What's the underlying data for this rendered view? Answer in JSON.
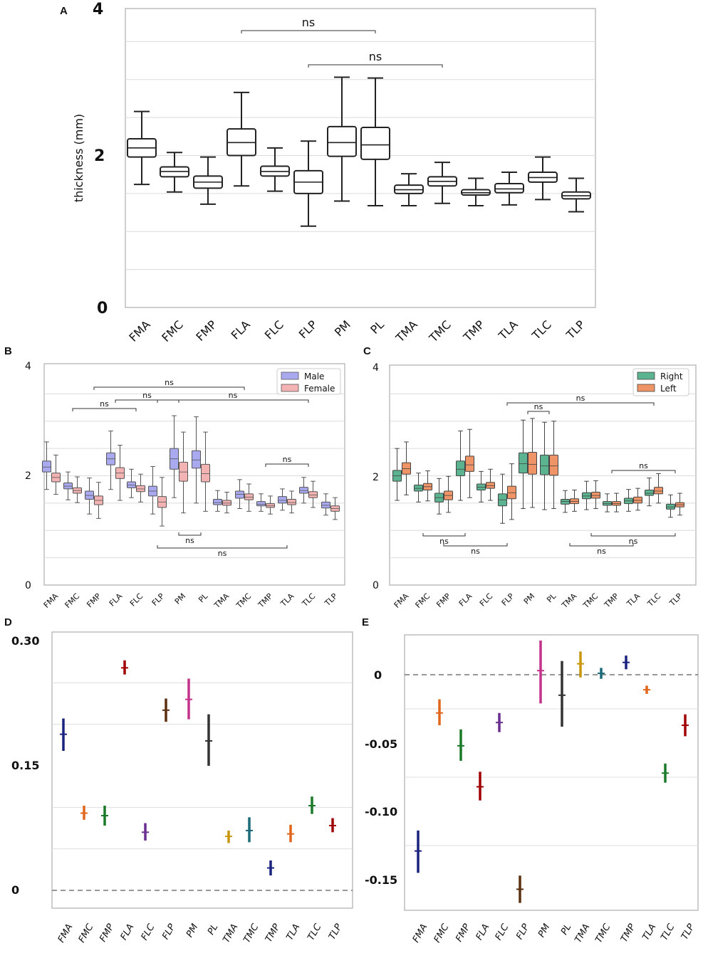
{
  "chart_data": [
    {
      "panel": "A",
      "type": "box",
      "ylabel": "thickness (mm)",
      "ylim": [
        0,
        4
      ],
      "yticks": [
        "0",
        "2",
        "4"
      ],
      "grid": true,
      "categories": [
        "FMA",
        "FMC",
        "FMP",
        "FLA",
        "FLC",
        "FLP",
        "PM",
        "PL",
        "TMA",
        "TMC",
        "TMP",
        "TLA",
        "TLC",
        "TLP"
      ],
      "boxes": [
        {
          "min": 1.62,
          "q1": 1.98,
          "med": 2.1,
          "q3": 2.22,
          "max": 2.58
        },
        {
          "min": 1.52,
          "q1": 1.72,
          "med": 1.79,
          "q3": 1.85,
          "max": 2.04
        },
        {
          "min": 1.36,
          "q1": 1.57,
          "med": 1.65,
          "q3": 1.73,
          "max": 1.98
        },
        {
          "min": 1.6,
          "q1": 2.0,
          "med": 2.17,
          "q3": 2.35,
          "max": 2.83
        },
        {
          "min": 1.53,
          "q1": 1.73,
          "med": 1.79,
          "q3": 1.86,
          "max": 2.1
        },
        {
          "min": 1.07,
          "q1": 1.5,
          "med": 1.65,
          "q3": 1.8,
          "max": 2.19
        },
        {
          "min": 1.4,
          "q1": 1.99,
          "med": 2.17,
          "q3": 2.38,
          "max": 3.03
        },
        {
          "min": 1.34,
          "q1": 1.95,
          "med": 2.14,
          "q3": 2.37,
          "max": 3.02
        },
        {
          "min": 1.34,
          "q1": 1.5,
          "med": 1.55,
          "q3": 1.61,
          "max": 1.76
        },
        {
          "min": 1.37,
          "q1": 1.6,
          "med": 1.66,
          "q3": 1.72,
          "max": 1.91
        },
        {
          "min": 1.34,
          "q1": 1.48,
          "med": 1.51,
          "q3": 1.55,
          "max": 1.7
        },
        {
          "min": 1.35,
          "q1": 1.51,
          "med": 1.56,
          "q3": 1.63,
          "max": 1.78
        },
        {
          "min": 1.42,
          "q1": 1.65,
          "med": 1.71,
          "q3": 1.78,
          "max": 1.98
        },
        {
          "min": 1.26,
          "q1": 1.43,
          "med": 1.47,
          "q3": 1.52,
          "max": 1.7
        }
      ],
      "annotations": [
        {
          "text": "ns",
          "from": "FLA",
          "to": "PL"
        },
        {
          "text": "ns",
          "from": "FLP",
          "to": "TMC"
        }
      ]
    },
    {
      "panel": "B",
      "type": "grouped-box",
      "ylim": [
        0,
        4
      ],
      "yticks": [
        "0",
        "2",
        "4"
      ],
      "legend_position": "top-right",
      "categories": [
        "FMA",
        "FMC",
        "FMP",
        "FLA",
        "FLC",
        "FLP",
        "PM",
        "PL",
        "TMA",
        "TMC",
        "TMP",
        "TLA",
        "TLC",
        "TLP"
      ],
      "series": [
        {
          "name": "Male",
          "color": "#a9a9f0",
          "edge": "#555555",
          "boxes": [
            {
              "min": 1.75,
              "q1": 2.07,
              "med": 2.16,
              "q3": 2.27,
              "max": 2.62
            },
            {
              "min": 1.56,
              "q1": 1.76,
              "med": 1.81,
              "q3": 1.87,
              "max": 2.07
            },
            {
              "min": 1.3,
              "q1": 1.57,
              "med": 1.64,
              "q3": 1.72,
              "max": 1.96
            },
            {
              "min": 1.75,
              "q1": 2.2,
              "med": 2.31,
              "q3": 2.42,
              "max": 2.82
            },
            {
              "min": 1.6,
              "q1": 1.78,
              "med": 1.83,
              "q3": 1.89,
              "max": 2.12
            },
            {
              "min": 1.3,
              "q1": 1.63,
              "med": 1.72,
              "q3": 1.81,
              "max": 2.17
            },
            {
              "min": 1.6,
              "q1": 2.12,
              "med": 2.31,
              "q3": 2.5,
              "max": 3.1
            },
            {
              "min": 1.5,
              "q1": 2.14,
              "med": 2.29,
              "q3": 2.46,
              "max": 3.08
            },
            {
              "min": 1.35,
              "q1": 1.47,
              "med": 1.51,
              "q3": 1.57,
              "max": 1.73
            },
            {
              "min": 1.4,
              "q1": 1.59,
              "med": 1.66,
              "q3": 1.72,
              "max": 1.93
            },
            {
              "min": 1.35,
              "q1": 1.45,
              "med": 1.48,
              "q3": 1.53,
              "max": 1.67
            },
            {
              "min": 1.37,
              "q1": 1.5,
              "med": 1.55,
              "q3": 1.62,
              "max": 1.76
            },
            {
              "min": 1.5,
              "q1": 1.68,
              "med": 1.73,
              "q3": 1.79,
              "max": 1.97
            },
            {
              "min": 1.28,
              "q1": 1.41,
              "med": 1.46,
              "q3": 1.52,
              "max": 1.67
            }
          ]
        },
        {
          "name": "Female",
          "color": "#f4b3b3",
          "edge": "#555555",
          "boxes": [
            {
              "min": 1.66,
              "q1": 1.89,
              "med": 1.97,
              "q3": 2.05,
              "max": 2.38
            },
            {
              "min": 1.51,
              "q1": 1.68,
              "med": 1.73,
              "q3": 1.78,
              "max": 1.98
            },
            {
              "min": 1.22,
              "q1": 1.47,
              "med": 1.55,
              "q3": 1.63,
              "max": 1.88
            },
            {
              "min": 1.55,
              "q1": 1.95,
              "med": 2.05,
              "q3": 2.15,
              "max": 2.56
            },
            {
              "min": 1.52,
              "q1": 1.71,
              "med": 1.76,
              "q3": 1.82,
              "max": 2.03
            },
            {
              "min": 1.08,
              "q1": 1.42,
              "med": 1.52,
              "q3": 1.62,
              "max": 1.97
            },
            {
              "min": 1.32,
              "q1": 1.9,
              "med": 2.07,
              "q3": 2.25,
              "max": 2.8
            },
            {
              "min": 1.35,
              "q1": 1.89,
              "med": 2.04,
              "q3": 2.21,
              "max": 2.8
            },
            {
              "min": 1.32,
              "q1": 1.46,
              "med": 1.5,
              "q3": 1.55,
              "max": 1.7
            },
            {
              "min": 1.35,
              "q1": 1.56,
              "med": 1.61,
              "q3": 1.67,
              "max": 1.85
            },
            {
              "min": 1.3,
              "q1": 1.42,
              "med": 1.45,
              "q3": 1.49,
              "max": 1.63
            },
            {
              "min": 1.32,
              "q1": 1.47,
              "med": 1.51,
              "q3": 1.57,
              "max": 1.72
            },
            {
              "min": 1.42,
              "q1": 1.6,
              "med": 1.65,
              "q3": 1.71,
              "max": 1.9
            },
            {
              "min": 1.2,
              "q1": 1.35,
              "med": 1.4,
              "q3": 1.45,
              "max": 1.6
            }
          ]
        }
      ],
      "annotations": [
        {
          "text": "ns",
          "from": "FMP",
          "to": "TMC",
          "side": "top",
          "level": 3
        },
        {
          "text": "ns",
          "from": "FMC",
          "to": "FLC",
          "side": "top",
          "level": 1
        },
        {
          "text": "ns",
          "from": "FLA",
          "to": "PM",
          "side": "top",
          "level": 2
        },
        {
          "text": "ns",
          "from": "FLP",
          "to": "TLC",
          "side": "top",
          "level": 2
        },
        {
          "text": "ns",
          "from": "TMP",
          "to": "TLC",
          "side": "top",
          "level": 0
        },
        {
          "text": "ns",
          "from": "PM",
          "to": "PL",
          "side": "bottom",
          "level": 0
        },
        {
          "text": "ns",
          "from": "FLP",
          "to": "TLA",
          "side": "bottom",
          "level": 1
        }
      ]
    },
    {
      "panel": "C",
      "type": "grouped-box",
      "ylim": [
        0,
        4
      ],
      "yticks": [
        "0",
        "2",
        "4"
      ],
      "legend_position": "top-right",
      "categories": [
        "FMA",
        "FMC",
        "FMP",
        "FLA",
        "FLC",
        "FLP",
        "PM",
        "PL",
        "TMA",
        "TMC",
        "TMP",
        "TLA",
        "TLC",
        "TLP"
      ],
      "series": [
        {
          "name": "Right",
          "color": "#5bb38f",
          "edge": "#444444",
          "boxes": [
            {
              "min": 1.55,
              "q1": 1.9,
              "med": 2.0,
              "q3": 2.1,
              "max": 2.5
            },
            {
              "min": 1.52,
              "q1": 1.72,
              "med": 1.77,
              "q3": 1.83,
              "max": 2.05
            },
            {
              "min": 1.3,
              "q1": 1.52,
              "med": 1.6,
              "q3": 1.68,
              "max": 1.95
            },
            {
              "min": 1.55,
              "q1": 2.0,
              "med": 2.12,
              "q3": 2.27,
              "max": 2.82
            },
            {
              "min": 1.52,
              "q1": 1.74,
              "med": 1.79,
              "q3": 1.85,
              "max": 2.08
            },
            {
              "min": 1.13,
              "q1": 1.45,
              "med": 1.56,
              "q3": 1.67,
              "max": 2.03
            },
            {
              "min": 1.4,
              "q1": 2.05,
              "med": 2.22,
              "q3": 2.42,
              "max": 3.02
            },
            {
              "min": 1.38,
              "q1": 2.02,
              "med": 2.18,
              "q3": 2.38,
              "max": 2.98
            },
            {
              "min": 1.33,
              "q1": 1.48,
              "med": 1.53,
              "q3": 1.57,
              "max": 1.73
            },
            {
              "min": 1.38,
              "q1": 1.58,
              "med": 1.63,
              "q3": 1.69,
              "max": 1.9
            },
            {
              "min": 1.34,
              "q1": 1.46,
              "med": 1.49,
              "q3": 1.53,
              "max": 1.67
            },
            {
              "min": 1.35,
              "q1": 1.49,
              "med": 1.54,
              "q3": 1.59,
              "max": 1.75
            },
            {
              "min": 1.45,
              "q1": 1.64,
              "med": 1.68,
              "q3": 1.74,
              "max": 1.96
            },
            {
              "min": 1.24,
              "q1": 1.39,
              "med": 1.43,
              "q3": 1.48,
              "max": 1.65
            }
          ]
        },
        {
          "name": "Left",
          "color": "#ee9466",
          "edge": "#444444",
          "boxes": [
            {
              "min": 1.65,
              "q1": 2.03,
              "med": 2.13,
              "q3": 2.24,
              "max": 2.62
            },
            {
              "min": 1.54,
              "q1": 1.74,
              "med": 1.8,
              "q3": 1.86,
              "max": 2.09
            },
            {
              "min": 1.33,
              "q1": 1.56,
              "med": 1.64,
              "q3": 1.72,
              "max": 1.99
            },
            {
              "min": 1.6,
              "q1": 2.08,
              "med": 2.2,
              "q3": 2.36,
              "max": 2.85
            },
            {
              "min": 1.55,
              "q1": 1.77,
              "med": 1.82,
              "q3": 1.88,
              "max": 2.12
            },
            {
              "min": 1.2,
              "q1": 1.58,
              "med": 1.69,
              "q3": 1.81,
              "max": 2.22
            },
            {
              "min": 1.42,
              "q1": 2.03,
              "med": 2.21,
              "q3": 2.43,
              "max": 3.05
            },
            {
              "min": 1.4,
              "q1": 2.01,
              "med": 2.18,
              "q3": 2.38,
              "max": 3.0
            },
            {
              "min": 1.35,
              "q1": 1.49,
              "med": 1.53,
              "q3": 1.58,
              "max": 1.74
            },
            {
              "min": 1.4,
              "q1": 1.59,
              "med": 1.64,
              "q3": 1.7,
              "max": 1.91
            },
            {
              "min": 1.34,
              "q1": 1.46,
              "med": 1.49,
              "q3": 1.53,
              "max": 1.68
            },
            {
              "min": 1.37,
              "q1": 1.5,
              "med": 1.55,
              "q3": 1.61,
              "max": 1.77
            },
            {
              "min": 1.5,
              "q1": 1.67,
              "med": 1.72,
              "q3": 1.79,
              "max": 2.04
            },
            {
              "min": 1.28,
              "q1": 1.43,
              "med": 1.47,
              "q3": 1.51,
              "max": 1.68
            }
          ]
        }
      ],
      "annotations": [
        {
          "text": "ns",
          "from": "PM",
          "to": "PL",
          "side": "top",
          "level": 1
        },
        {
          "text": "ns",
          "from": "FLP",
          "to": "TLC",
          "side": "top",
          "level": 2
        },
        {
          "text": "ns",
          "from": "TMP",
          "to": "TLP",
          "side": "top",
          "level": 0
        },
        {
          "text": "ns",
          "from": "FMC",
          "to": "FLA",
          "side": "bottom",
          "level": 0
        },
        {
          "text": "ns",
          "from": "FMP",
          "to": "FLP",
          "side": "bottom",
          "level": 1
        },
        {
          "text": "ns",
          "from": "TMC",
          "to": "TLP",
          "side": "bottom",
          "level": 0
        },
        {
          "text": "ns",
          "from": "TMA",
          "to": "TLA",
          "side": "bottom",
          "level": 1
        }
      ]
    },
    {
      "panel": "D",
      "type": "point-interval",
      "ylim": [
        -0.013,
        0.31
      ],
      "yticks": [
        "0",
        "0.15",
        "0.30"
      ],
      "reference_line": 0,
      "categories": [
        "FMA",
        "FMC",
        "FMP",
        "FLA",
        "FLC",
        "FLP",
        "PM",
        "PL",
        "TMA",
        "TMC",
        "TMP",
        "TLA",
        "TLC",
        "TLP"
      ],
      "points": [
        {
          "value": 0.188,
          "low": 0.168,
          "high": 0.207,
          "color": "#1a237e"
        },
        {
          "value": 0.093,
          "low": 0.085,
          "high": 0.102,
          "color": "#e0661c"
        },
        {
          "value": 0.09,
          "low": 0.078,
          "high": 0.102,
          "color": "#1b7a2a"
        },
        {
          "value": 0.268,
          "low": 0.26,
          "high": 0.277,
          "color": "#a00000"
        },
        {
          "value": 0.07,
          "low": 0.06,
          "high": 0.081,
          "color": "#6a2d90"
        },
        {
          "value": 0.217,
          "low": 0.203,
          "high": 0.231,
          "color": "#5a3010"
        },
        {
          "value": 0.23,
          "low": 0.206,
          "high": 0.255,
          "color": "#c2328a"
        },
        {
          "value": 0.18,
          "low": 0.15,
          "high": 0.212,
          "color": "#333333"
        },
        {
          "value": 0.065,
          "low": 0.057,
          "high": 0.072,
          "color": "#c8960a"
        },
        {
          "value": 0.072,
          "low": 0.058,
          "high": 0.088,
          "color": "#1a6a7a"
        },
        {
          "value": 0.027,
          "low": 0.018,
          "high": 0.036,
          "color": "#1a237e"
        },
        {
          "value": 0.068,
          "low": 0.058,
          "high": 0.079,
          "color": "#e0661c"
        },
        {
          "value": 0.102,
          "low": 0.092,
          "high": 0.113,
          "color": "#1b7a2a"
        },
        {
          "value": 0.078,
          "low": 0.07,
          "high": 0.087,
          "color": "#a00000"
        }
      ]
    },
    {
      "panel": "E",
      "type": "point-interval",
      "ylim": [
        -0.168,
        0.028
      ],
      "yticks": [
        "-0.15",
        "-0.10",
        "-0.05",
        "0"
      ],
      "reference_line": 0,
      "categories": [
        "FMA",
        "FMC",
        "FMP",
        "FLA",
        "FLC",
        "FLP",
        "PM",
        "PL",
        "TMA",
        "TMC",
        "TMP",
        "TLA",
        "TLC",
        "TLP"
      ],
      "points": [
        {
          "value": -0.129,
          "low": -0.145,
          "high": -0.114,
          "color": "#1a237e"
        },
        {
          "value": -0.028,
          "low": -0.037,
          "high": -0.018,
          "color": "#e0661c"
        },
        {
          "value": -0.052,
          "low": -0.063,
          "high": -0.04,
          "color": "#1b7a2a"
        },
        {
          "value": -0.082,
          "low": -0.092,
          "high": -0.071,
          "color": "#a00000"
        },
        {
          "value": -0.035,
          "low": -0.042,
          "high": -0.028,
          "color": "#6a2d90"
        },
        {
          "value": -0.157,
          "low": -0.167,
          "high": -0.147,
          "color": "#5a3010"
        },
        {
          "value": 0.003,
          "low": -0.021,
          "high": 0.025,
          "color": "#c2328a"
        },
        {
          "value": -0.015,
          "low": -0.038,
          "high": 0.01,
          "color": "#333333"
        },
        {
          "value": 0.008,
          "low": -0.002,
          "high": 0.017,
          "color": "#c8960a"
        },
        {
          "value": 0.001,
          "low": -0.003,
          "high": 0.005,
          "color": "#1a6a7a"
        },
        {
          "value": 0.009,
          "low": 0.004,
          "high": 0.014,
          "color": "#1a237e"
        },
        {
          "value": -0.011,
          "low": -0.014,
          "high": -0.008,
          "color": "#e0661c"
        },
        {
          "value": -0.072,
          "low": -0.079,
          "high": -0.065,
          "color": "#1b7a2a"
        },
        {
          "value": -0.037,
          "low": -0.045,
          "high": -0.029,
          "color": "#a00000"
        }
      ]
    }
  ]
}
